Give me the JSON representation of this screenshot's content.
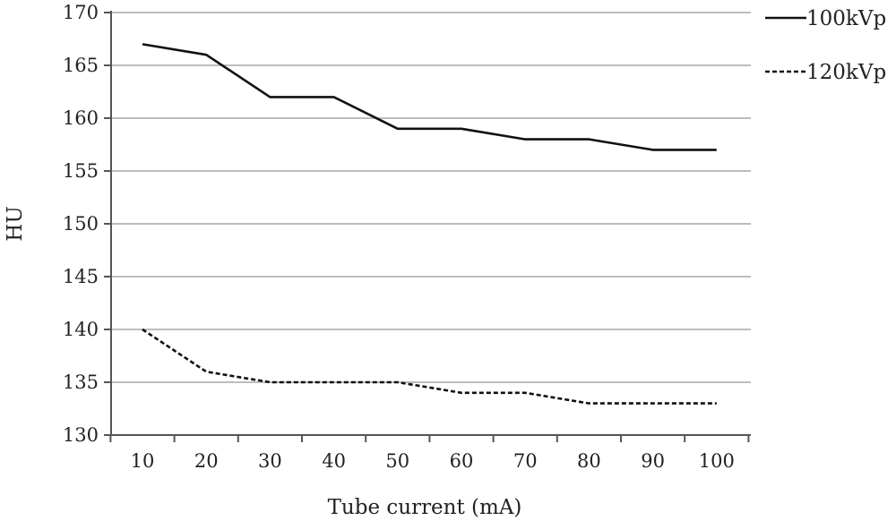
{
  "chart_data": {
    "type": "line",
    "xlabel": "Tube current (mA)",
    "ylabel": "HU",
    "x": [
      10,
      20,
      30,
      40,
      50,
      60,
      70,
      80,
      90,
      100
    ],
    "ylim": [
      130,
      170
    ],
    "yticks": [
      130,
      135,
      140,
      145,
      150,
      155,
      160,
      165,
      170
    ],
    "grid": true,
    "legend_position": "top-right",
    "series": [
      {
        "name": "100kVp",
        "style": "solid",
        "color": "#111111",
        "values": [
          167,
          166,
          162,
          162,
          159,
          159,
          158,
          158,
          157,
          157
        ]
      },
      {
        "name": "120kVp",
        "style": "dashed",
        "color": "#111111",
        "values": [
          140,
          136,
          135,
          135,
          135,
          134,
          134,
          133,
          133,
          133
        ]
      }
    ]
  }
}
